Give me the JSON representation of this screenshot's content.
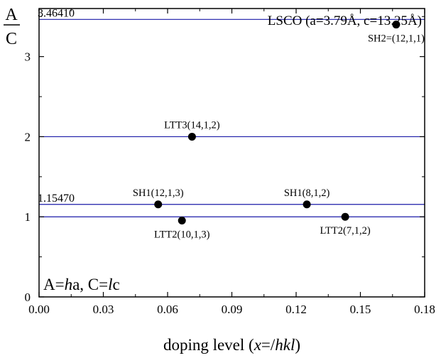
{
  "chart_data": {
    "type": "scatter",
    "title": "LSCO (a=3.79Å, c=13.25Å)",
    "xlabel": {
      "prefix": "doping level (",
      "var": "x",
      "eq": "=/",
      "hkl": "hkl",
      "suffix": ")"
    },
    "ylabel": {
      "numerator": "A",
      "denominator": "C"
    },
    "xlim": [
      0,
      0.18
    ],
    "ylim": [
      0,
      3.6
    ],
    "xticks": [
      0.0,
      0.03,
      0.06,
      0.09,
      0.12,
      0.15,
      0.18
    ],
    "xtick_labels": [
      "0.00",
      "0.03",
      "0.06",
      "0.09",
      "0.12",
      "0.15",
      "0.18"
    ],
    "yticks": [
      0,
      1,
      2,
      3
    ],
    "ytick_labels": [
      "0",
      "1",
      "2",
      "3"
    ],
    "grid": false,
    "legend": "none",
    "reference_lines": [
      {
        "y": 3.4641,
        "label": "3.46410",
        "color": "#1a1aa8"
      },
      {
        "y": 2.0,
        "label": "",
        "color": "#1a1aa8"
      },
      {
        "y": 1.1547,
        "label": "1.15470",
        "color": "#1a1aa8"
      },
      {
        "y": 1.0,
        "label": "",
        "color": "#1a1aa8"
      }
    ],
    "points": [
      {
        "x": 0.0556,
        "y": 1.1547,
        "label": "SH1(12,1,3)",
        "label_pos": "above"
      },
      {
        "x": 0.0667,
        "y": 0.9535,
        "label": "LTT2(10,1,3)",
        "label_pos": "below"
      },
      {
        "x": 0.0714,
        "y": 2.0,
        "label": "LTT3(14,1,2)",
        "label_pos": "above"
      },
      {
        "x": 0.125,
        "y": 1.1547,
        "label": "SH1(8,1,2)",
        "label_pos": "above"
      },
      {
        "x": 0.1429,
        "y": 1.0,
        "label": "LTT2(7,1,2)",
        "label_pos": "below"
      },
      {
        "x": 0.1667,
        "y": 3.4,
        "label": "SH2=(12,1,1)",
        "label_pos": "below"
      }
    ],
    "annotation": {
      "a_pre": "A=",
      "h": "h",
      "a_mid": "a, C=",
      "l": "l",
      "a_post": "c"
    },
    "marker_color": "#000000"
  }
}
